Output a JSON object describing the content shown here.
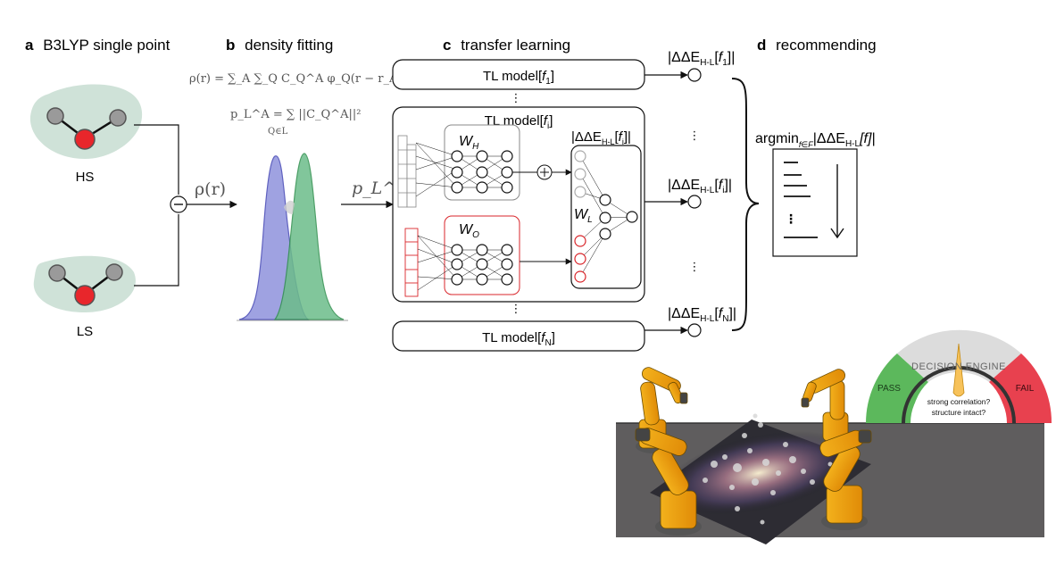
{
  "panels": {
    "a": {
      "letter": "a",
      "title": "B3LYP single point",
      "hs": "HS",
      "ls": "LS",
      "minus": "⊖",
      "rho": "ρ(r)"
    },
    "b": {
      "letter": "b",
      "title": "density fitting",
      "eq1": "ρ(r) = ∑_A ∑_Q C_Q^A φ_Q(r − r_A)",
      "eq2_lhs": "p_L^A = ",
      "eq2_rhs": "∑ ||C_Q^A||²",
      "eq2_sub": "Q∈L",
      "arrow_label": "p_L^A"
    },
    "c": {
      "letter": "c",
      "title": "transfer learning",
      "model_prefix": "TL model[",
      "model_suffix": "]",
      "f1": "f",
      "f1_sub": "1",
      "fi": "f",
      "fi_sub": "i",
      "fN": "f",
      "fN_sub": "N",
      "wh": "W",
      "wh_sub": "H",
      "wo": "W",
      "wo_sub": "O",
      "wl": "W",
      "wl_sub": "L",
      "plus": "⊕",
      "dots": "⋮",
      "delta": "|ΔΔE",
      "delta_sub": "H-L",
      "delta_bracket": "[",
      "delta_end": "]|"
    },
    "d": {
      "letter": "d",
      "title": "recommending",
      "argmin": "argmin",
      "argmin_sub": "f∈F",
      "argmin_expr": "|ΔΔE",
      "argmin_expr_sub": "H-L",
      "argmin_f": "[f]|"
    }
  },
  "gauge": {
    "title": "DECISION ENGINE",
    "pass": "PASS",
    "fail": "FAIL",
    "line1": "strong correlation?",
    "line2": "structure intact?",
    "colors": {
      "pass": "#5cb85c",
      "fail": "#e8414f",
      "mid": "#dcdcdc",
      "needle": "#f7c25a"
    }
  },
  "colors": {
    "molecule_bg": "#cfe2d8",
    "oxygen": "#e8262b",
    "hydrogen": "#9a9a9a",
    "blue_peak": "#7f83d6",
    "green_peak": "#5fb57f",
    "red_net": "#d9262b"
  }
}
